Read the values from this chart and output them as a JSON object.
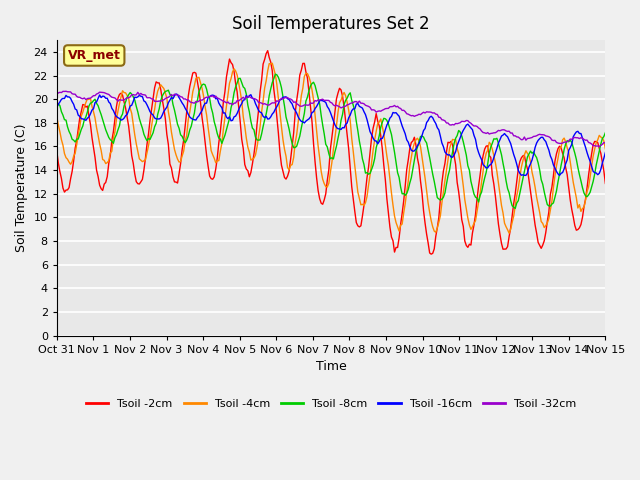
{
  "title": "Soil Temperatures Set 2",
  "xlabel": "Time",
  "ylabel": "Soil Temperature (C)",
  "ylim": [
    0,
    25
  ],
  "yticks": [
    0,
    2,
    4,
    6,
    8,
    10,
    12,
    14,
    16,
    18,
    20,
    22,
    24
  ],
  "x_labels": [
    "Oct 31",
    "Nov 1",
    "Nov 2",
    "Nov 3",
    "Nov 4",
    "Nov 5",
    "Nov 6",
    "Nov 7",
    "Nov 8",
    "Nov 9",
    "Nov 10",
    "Nov 11",
    "Nov 12",
    "Nov 13",
    "Nov 14",
    "Nov 15"
  ],
  "x_tick_days": [
    0,
    1,
    2,
    3,
    4,
    5,
    6,
    7,
    8,
    9,
    10,
    11,
    12,
    13,
    14,
    15
  ],
  "annotation_text": "VR_met",
  "annotation_color": "#8B0000",
  "annotation_bg": "#FFFF99",
  "annotation_edge": "#8B6914",
  "plot_bg": "#E8E8E8",
  "fig_bg": "#F0F0F0",
  "grid_color": "#FFFFFF",
  "series": [
    {
      "label": "Tsoil -2cm",
      "color": "#FF0000"
    },
    {
      "label": "Tsoil -4cm",
      "color": "#FF8800"
    },
    {
      "label": "Tsoil -8cm",
      "color": "#00CC00"
    },
    {
      "label": "Tsoil -16cm",
      "color": "#0000FF"
    },
    {
      "label": "Tsoil -32cm",
      "color": "#9900CC"
    }
  ]
}
